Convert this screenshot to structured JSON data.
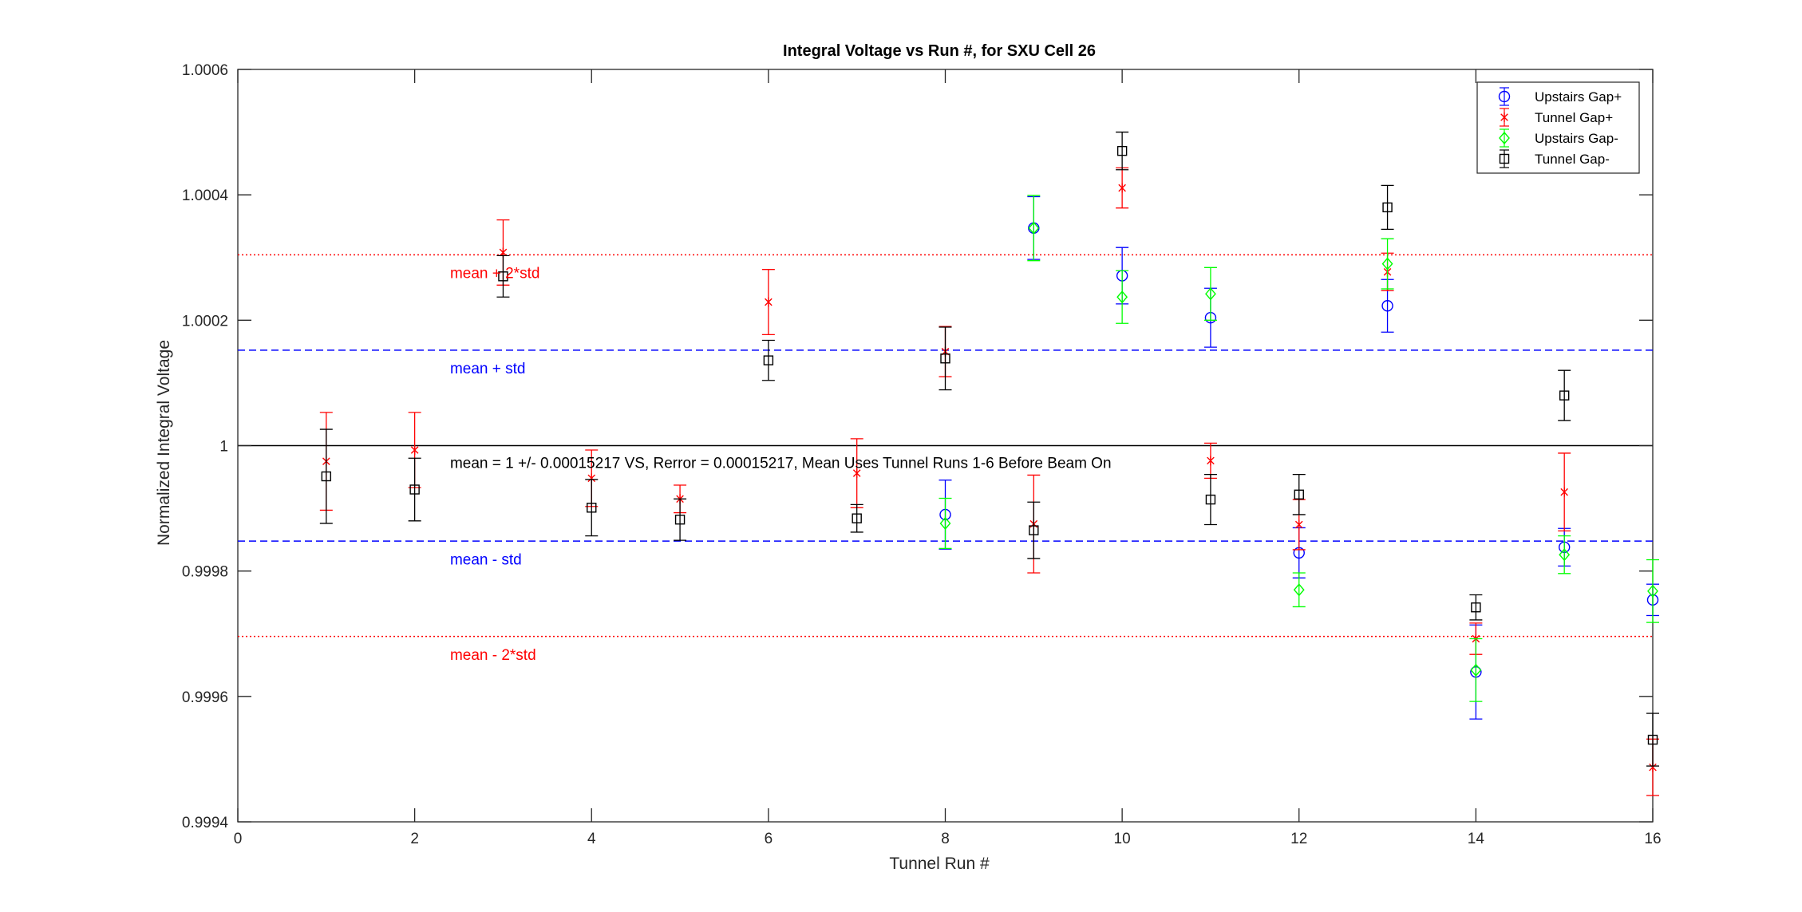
{
  "chart_data": {
    "type": "scatter",
    "title": "Integral Voltage vs Run #, for SXU Cell 26",
    "xlabel": "Tunnel Run #",
    "ylabel": "Normalized Integral Voltage",
    "xlim": [
      0,
      16
    ],
    "ylim": [
      0.9994,
      1.0006
    ],
    "xticks": [
      0,
      2,
      4,
      6,
      8,
      10,
      12,
      14,
      16
    ],
    "xtick_labels": [
      "0",
      "2",
      "4",
      "6",
      "8",
      "10",
      "12",
      "14",
      "16"
    ],
    "yticks": [
      0.9994,
      0.9996,
      0.9998,
      1.0,
      1.0002,
      1.0004,
      1.0006
    ],
    "ytick_labels": [
      "0.9994",
      "0.9996",
      "0.9998",
      "1",
      "1.0002",
      "1.0004",
      "1.0006"
    ],
    "grid": false,
    "legend_position": "top-right",
    "series": [
      {
        "name": "Upstairs Gap+",
        "color": "#0000ff",
        "marker": "circle",
        "points": [
          {
            "x": 8,
            "y": 0.99989,
            "err": 5.5e-05
          },
          {
            "x": 9,
            "y": 1.000347,
            "err": 5e-05
          },
          {
            "x": 10,
            "y": 1.000271,
            "err": 4.5e-05
          },
          {
            "x": 11,
            "y": 1.000204,
            "err": 4.7e-05
          },
          {
            "x": 12,
            "y": 0.999829,
            "err": 4e-05
          },
          {
            "x": 13,
            "y": 1.000223,
            "err": 4.2e-05
          },
          {
            "x": 14,
            "y": 0.999639,
            "err": 7.5e-05
          },
          {
            "x": 15,
            "y": 0.999838,
            "err": 3e-05
          },
          {
            "x": 16,
            "y": 0.999754,
            "err": 2.5e-05
          }
        ]
      },
      {
        "name": "Tunnel Gap+",
        "color": "#ff0000",
        "marker": "asterisk",
        "points": [
          {
            "x": 1,
            "y": 0.999975,
            "err": 7.8e-05
          },
          {
            "x": 2,
            "y": 0.999993,
            "err": 6e-05
          },
          {
            "x": 3,
            "y": 1.000308,
            "err": 5.2e-05
          },
          {
            "x": 4,
            "y": 0.999948,
            "err": 4.5e-05
          },
          {
            "x": 5,
            "y": 0.999915,
            "err": 2.2e-05
          },
          {
            "x": 6,
            "y": 1.000229,
            "err": 5.2e-05
          },
          {
            "x": 7,
            "y": 0.999956,
            "err": 5.5e-05
          },
          {
            "x": 8,
            "y": 1.00015,
            "err": 4e-05
          },
          {
            "x": 9,
            "y": 0.999875,
            "err": 7.8e-05
          },
          {
            "x": 10,
            "y": 1.000411,
            "err": 3.2e-05
          },
          {
            "x": 11,
            "y": 0.999976,
            "err": 2.8e-05
          },
          {
            "x": 12,
            "y": 0.999874,
            "err": 4e-05
          },
          {
            "x": 13,
            "y": 1.000277,
            "err": 3e-05
          },
          {
            "x": 14,
            "y": 0.999692,
            "err": 2.5e-05
          },
          {
            "x": 15,
            "y": 0.999926,
            "err": 6.2e-05
          },
          {
            "x": 16,
            "y": 0.999487,
            "err": 4.5e-05
          }
        ]
      },
      {
        "name": "Upstairs Gap-",
        "color": "#00ff00",
        "marker": "diamond",
        "points": [
          {
            "x": 8,
            "y": 0.999876,
            "err": 4e-05
          },
          {
            "x": 9,
            "y": 1.000347,
            "err": 5.2e-05
          },
          {
            "x": 10,
            "y": 1.000237,
            "err": 4.2e-05
          },
          {
            "x": 11,
            "y": 1.000242,
            "err": 4.2e-05
          },
          {
            "x": 12,
            "y": 0.99977,
            "err": 2.7e-05
          },
          {
            "x": 13,
            "y": 1.00029,
            "err": 4e-05
          },
          {
            "x": 14,
            "y": 0.999642,
            "err": 5e-05
          },
          {
            "x": 15,
            "y": 0.999826,
            "err": 3e-05
          },
          {
            "x": 16,
            "y": 0.999768,
            "err": 5e-05
          }
        ]
      },
      {
        "name": "Tunnel Gap-",
        "color": "#000000",
        "marker": "square",
        "points": [
          {
            "x": 1,
            "y": 0.999951,
            "err": 7.5e-05
          },
          {
            "x": 2,
            "y": 0.99993,
            "err": 5e-05
          },
          {
            "x": 3,
            "y": 1.00027,
            "err": 3.3e-05
          },
          {
            "x": 4,
            "y": 0.999901,
            "err": 4.5e-05
          },
          {
            "x": 5,
            "y": 0.999882,
            "err": 3.3e-05
          },
          {
            "x": 6,
            "y": 1.000136,
            "err": 3.2e-05
          },
          {
            "x": 7,
            "y": 0.999884,
            "err": 2.2e-05
          },
          {
            "x": 8,
            "y": 1.000139,
            "err": 5e-05
          },
          {
            "x": 9,
            "y": 0.999865,
            "err": 4.5e-05
          },
          {
            "x": 10,
            "y": 1.00047,
            "err": 3e-05
          },
          {
            "x": 11,
            "y": 0.999914,
            "err": 4e-05
          },
          {
            "x": 12,
            "y": 0.999922,
            "err": 3.2e-05
          },
          {
            "x": 13,
            "y": 1.00038,
            "err": 3.5e-05
          },
          {
            "x": 14,
            "y": 0.999742,
            "err": 2e-05
          },
          {
            "x": 15,
            "y": 1.00008,
            "err": 4e-05
          },
          {
            "x": 16,
            "y": 0.999531,
            "err": 4.2e-05
          }
        ]
      }
    ],
    "reference_lines": [
      {
        "y": 1.0,
        "color": "#000000",
        "style": "solid",
        "label": "mean = 1 +/- 0.00015217 VS, Rerror = 0.00015217, Mean Uses Tunnel Runs 1-6 Before Beam On",
        "label_color": "#000000",
        "label_x": 2.4,
        "label_y": 0.999973
      },
      {
        "y": 1.00015217,
        "color": "#0000ff",
        "style": "dashed",
        "label": "mean + std",
        "label_color": "#0000ff",
        "label_x": 2.4,
        "label_y": 1.000124
      },
      {
        "y": 0.99984783,
        "color": "#0000ff",
        "style": "dashed",
        "label": "mean - std",
        "label_color": "#0000ff",
        "label_x": 2.4,
        "label_y": 0.999819
      },
      {
        "y": 1.00030434,
        "color": "#ff0000",
        "style": "dotted",
        "label": "mean + 2*std",
        "label_color": "#ff0000",
        "label_x": 2.4,
        "label_y": 1.000276
      },
      {
        "y": 0.99969566,
        "color": "#ff0000",
        "style": "dotted",
        "label": "mean - 2*std",
        "label_color": "#ff0000",
        "label_x": 2.4,
        "label_y": 0.999667
      }
    ]
  }
}
